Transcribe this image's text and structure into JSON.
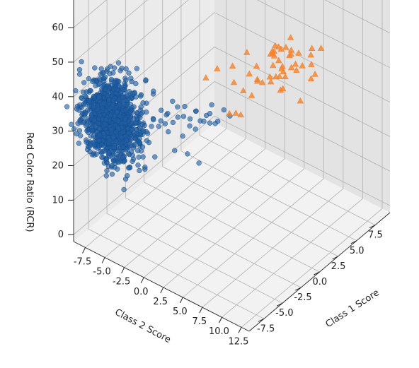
{
  "chart_data": {
    "type": "scatter",
    "projection": "3d",
    "title": "",
    "xlabel": "Class 1 Score",
    "ylabel": "Class 2 Score",
    "zlabel": "Red Color Ratio (RCR)",
    "x_ticks": [
      "-7.5",
      "-5.0",
      "-2.5",
      "0.0",
      "2.5",
      "5.0",
      "7.5"
    ],
    "y_ticks": [
      "-7.5",
      "-5.0",
      "-2.5",
      "0.0",
      "2.5",
      "5.0",
      "7.5",
      "10.0",
      "12.5"
    ],
    "z_ticks": [
      "0",
      "10",
      "20",
      "30",
      "40",
      "50",
      "60"
    ],
    "xlim": [
      -9.5,
      9.5
    ],
    "ylim": [
      -9,
      13.5
    ],
    "zlim": [
      -2,
      68
    ],
    "grid": true,
    "legend": "none",
    "series": [
      {
        "marker": "circle",
        "color": "#1f5fa6",
        "cluster": {
          "n": 1150,
          "x_mean": -7.5,
          "x_sd": 0.9,
          "y_mean": -6.0,
          "y_sd": 1.6,
          "z_mean": 33,
          "z_sd": 5.5,
          "seed": 11
        },
        "points": [
          [
            -3.9,
            -5.0,
            30
          ],
          [
            -3.5,
            -4.5,
            28
          ],
          [
            -3.0,
            -4.0,
            27
          ],
          [
            -2.6,
            -3.5,
            29
          ],
          [
            -2.2,
            -3.2,
            26
          ],
          [
            -1.8,
            -3.0,
            30
          ],
          [
            -1.4,
            -2.6,
            27
          ],
          [
            -1.0,
            -2.2,
            24
          ],
          [
            -0.6,
            -1.8,
            28
          ],
          [
            -0.3,
            -1.5,
            25
          ],
          [
            0.2,
            -1.2,
            26
          ],
          [
            0.5,
            -0.8,
            29
          ],
          [
            0.9,
            -0.4,
            24
          ],
          [
            1.3,
            0.0,
            27
          ],
          [
            1.7,
            0.4,
            25
          ],
          [
            -4.0,
            -3.0,
            33
          ],
          [
            -3.5,
            -2.8,
            31
          ],
          [
            -3.2,
            -2.3,
            35
          ],
          [
            -2.8,
            -2.0,
            30
          ],
          [
            -2.4,
            -1.5,
            33
          ],
          [
            -2.0,
            -1.2,
            29
          ],
          [
            -1.6,
            -0.8,
            31
          ],
          [
            -1.2,
            -0.2,
            28
          ],
          [
            -0.8,
            0.2,
            30
          ],
          [
            -0.5,
            0.6,
            27
          ],
          [
            -4.5,
            -4.5,
            41
          ],
          [
            -4.2,
            -3.8,
            38
          ],
          [
            -3.8,
            -4.2,
            36
          ],
          [
            -5.0,
            -5.5,
            22
          ],
          [
            -4.6,
            -5.0,
            20
          ],
          [
            -4.3,
            -4.8,
            15
          ],
          [
            -3.8,
            -4.0,
            18
          ],
          [
            -2.5,
            -2.7,
            19
          ],
          [
            -1.5,
            -2.0,
            17
          ],
          [
            -0.8,
            -1.2,
            14
          ],
          [
            -3.0,
            -5.2,
            24
          ],
          [
            -2.0,
            -4.0,
            22
          ],
          [
            -1.0,
            -3.1,
            20
          ],
          [
            0.0,
            -2.4,
            21
          ],
          [
            1.0,
            -1.5,
            22
          ]
        ]
      },
      {
        "marker": "triangle",
        "color": "#f4822a",
        "cluster": {
          "n": 40,
          "x_mean": 7.5,
          "x_sd": 1.3,
          "y_mean": 2.0,
          "y_sd": 1.8,
          "z_mean": 32,
          "z_sd": 4.0,
          "seed": 29
        },
        "points": [
          [
            1.5,
            -2.5,
            33
          ],
          [
            2.3,
            -1.8,
            35
          ],
          [
            3.0,
            -0.5,
            36
          ],
          [
            3.5,
            -0.8,
            30
          ],
          [
            4.1,
            0.6,
            33
          ],
          [
            3.8,
            1.2,
            28
          ],
          [
            2.0,
            1.5,
            26
          ],
          [
            4.6,
            1.8,
            31
          ],
          [
            5.2,
            2.2,
            32
          ],
          [
            2.6,
            0.3,
            24
          ],
          [
            4.4,
            0.0,
            38
          ],
          [
            1.2,
            0.8,
            27
          ]
        ]
      }
    ]
  }
}
